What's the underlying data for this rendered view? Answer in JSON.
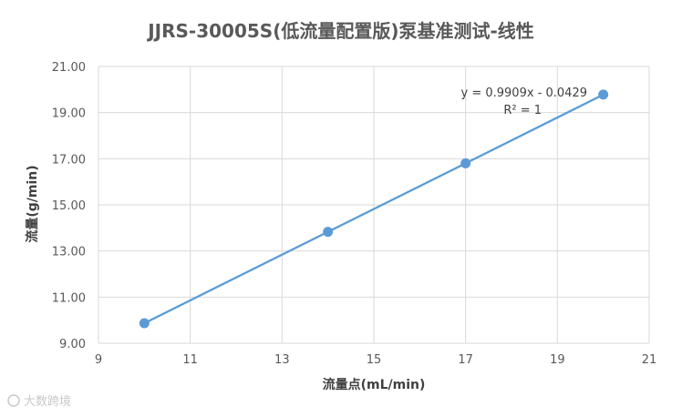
{
  "chart_data": {
    "type": "scatter",
    "title": "JJRS-30005S(低流量配置版)泵基准测试-线性",
    "xlabel": "流量点(mL/min)",
    "ylabel": "流量(g/min)",
    "xlim": [
      9,
      21
    ],
    "ylim": [
      9.0,
      21.0
    ],
    "x_ticks": [
      "9",
      "11",
      "13",
      "15",
      "17",
      "19",
      "21"
    ],
    "y_ticks": [
      "9.00",
      "11.00",
      "13.00",
      "15.00",
      "17.00",
      "19.00",
      "21.00"
    ],
    "grid": true,
    "series": [
      {
        "x": [
          10,
          14,
          17,
          20
        ],
        "y": [
          9.87,
          13.83,
          16.8,
          19.78
        ]
      }
    ],
    "trendline": {
      "type": "linear",
      "slope": 0.9909,
      "intercept": -0.0429,
      "x_range": [
        10,
        20
      ],
      "equation_label": "y = 0.9909x - 0.0429",
      "r2_label": "R² = 1"
    },
    "colors": {
      "series": "#5b9bd5",
      "grid": "#d9d9d9",
      "text": "#595959"
    }
  },
  "watermark": "大数跨境"
}
